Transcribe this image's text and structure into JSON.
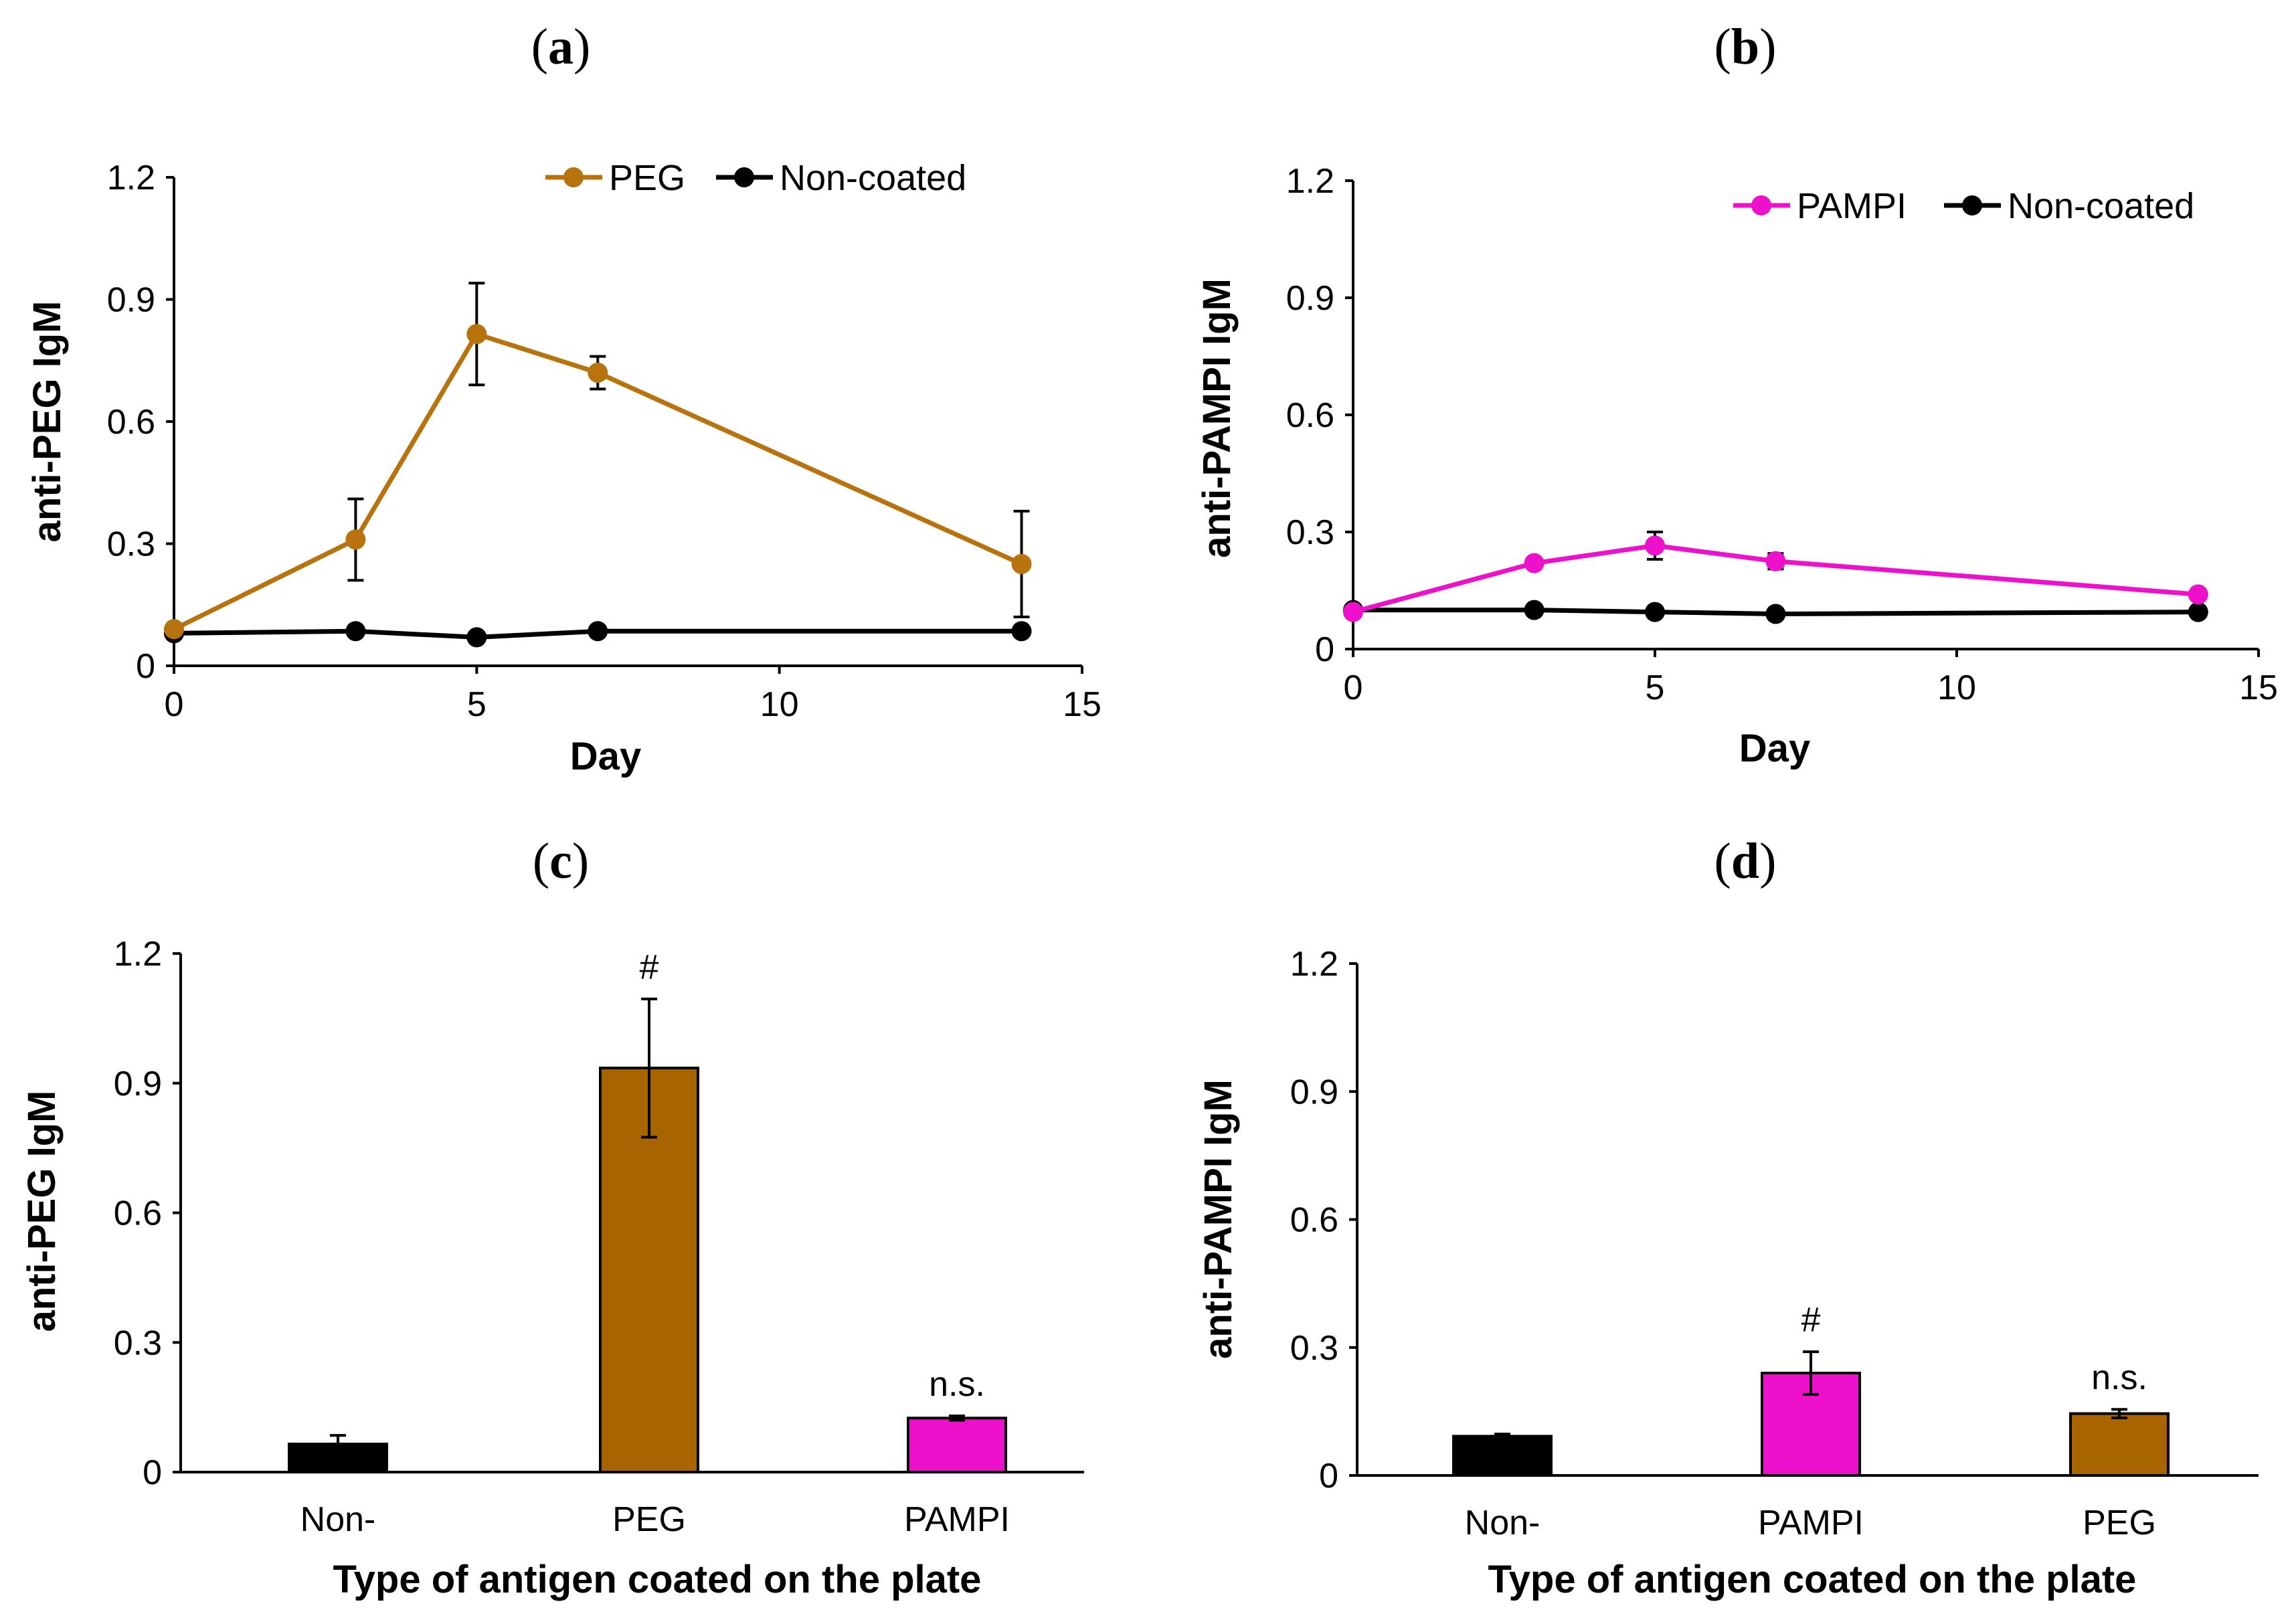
{
  "chart_data": [
    {
      "panel": "(a)",
      "type": "line",
      "title": "",
      "xlabel": "Day",
      "ylabel": "anti-PEG IgM",
      "xlim": [
        0,
        15
      ],
      "ylim": [
        0,
        1.2
      ],
      "xticks": [
        "0",
        "5",
        "10",
        "15"
      ],
      "yticks": [
        "0",
        "0.3",
        "0.6",
        "0.9",
        "1.2"
      ],
      "legend_position": "top",
      "series": [
        {
          "name": "PEG",
          "color": "#B8730E",
          "x": [
            0,
            3,
            5,
            7,
            14
          ],
          "y": [
            0.09,
            0.31,
            0.815,
            0.72,
            0.25
          ],
          "err": [
            0,
            0.1,
            0.125,
            0.04,
            0.13
          ]
        },
        {
          "name": "Non-coated",
          "color": "#000000",
          "x": [
            0,
            3,
            5,
            7,
            14
          ],
          "y": [
            0.08,
            0.085,
            0.07,
            0.085,
            0.085
          ],
          "err": [
            0,
            0,
            0,
            0,
            0
          ]
        }
      ]
    },
    {
      "panel": "(b)",
      "type": "line",
      "title": "",
      "xlabel": "Day",
      "ylabel": "anti-PAMPI IgM",
      "xlim": [
        0,
        15
      ],
      "ylim": [
        0,
        1.2
      ],
      "xticks": [
        "0",
        "5",
        "10",
        "15"
      ],
      "yticks": [
        "0",
        "0.3",
        "0.6",
        "0.9",
        "1.2"
      ],
      "legend_position": "top-right",
      "series": [
        {
          "name": "PAMPI",
          "color": "#EE11CC",
          "x": [
            0,
            3,
            5,
            7,
            14
          ],
          "y": [
            0.095,
            0.22,
            0.265,
            0.225,
            0.14
          ],
          "err": [
            0,
            0,
            0.035,
            0.02,
            0
          ]
        },
        {
          "name": "Non-coated",
          "color": "#000000",
          "x": [
            0,
            3,
            5,
            7,
            14
          ],
          "y": [
            0.1,
            0.1,
            0.095,
            0.09,
            0.095
          ],
          "err": [
            0,
            0,
            0,
            0,
            0
          ]
        }
      ]
    },
    {
      "panel": "(c)",
      "type": "bar",
      "title": "",
      "xlabel": "Type of antigen coated on the plate",
      "ylabel": "anti-PEG IgM",
      "ylim": [
        0,
        1.2
      ],
      "yticks": [
        "0",
        "0.3",
        "0.6",
        "0.9",
        "1.2"
      ],
      "categories": [
        "Non-",
        "PEG",
        "PAMPI"
      ],
      "values": [
        0.065,
        0.935,
        0.125
      ],
      "errors": [
        0.02,
        0.16,
        0.005
      ],
      "colors": [
        "#000000",
        "#A86400",
        "#EE11CC"
      ],
      "annotations": [
        "",
        "#",
        "n.s."
      ]
    },
    {
      "panel": "(d)",
      "type": "bar",
      "title": "",
      "xlabel": "Type of antigen coated on the plate",
      "ylabel": "anti-PAMPI IgM",
      "ylim": [
        0,
        1.2
      ],
      "yticks": [
        "0",
        "0.3",
        "0.6",
        "0.9",
        "1.2"
      ],
      "categories": [
        "Non-",
        "PAMPI",
        "PEG"
      ],
      "values": [
        0.092,
        0.24,
        0.145
      ],
      "errors": [
        0.005,
        0.05,
        0.01
      ],
      "colors": [
        "#000000",
        "#EE11CC",
        "#A86400"
      ],
      "annotations": [
        "",
        "#",
        "n.s."
      ]
    }
  ]
}
